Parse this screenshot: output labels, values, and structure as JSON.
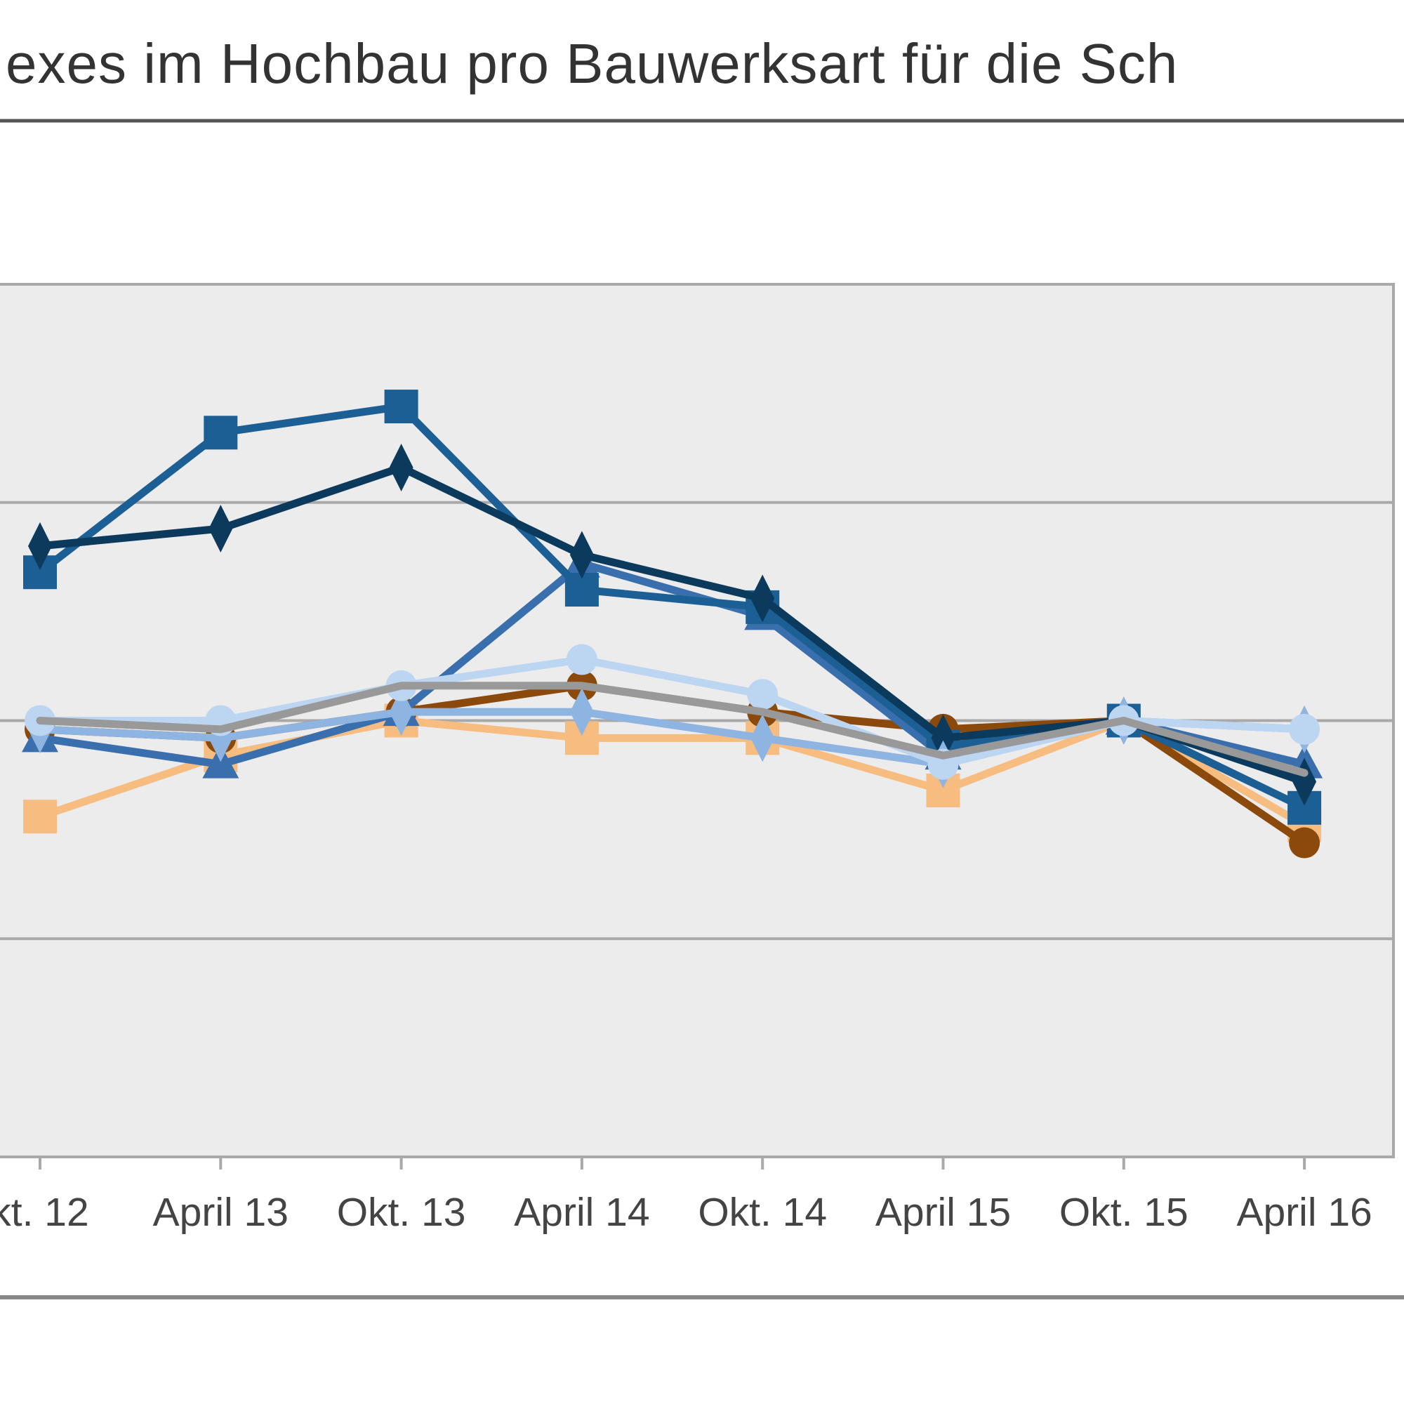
{
  "chart_data": {
    "type": "line",
    "title": "exes im Hochbau pro Bauwerksart für die Sch",
    "xlabel": "",
    "ylabel": "",
    "categories": [
      "kt. 12",
      "April 13",
      "Okt. 13",
      "April 14",
      "Okt. 14",
      "April 15",
      "Okt. 15",
      "April 16"
    ],
    "ylim": [
      95,
      105
    ],
    "grid": true,
    "series": [
      {
        "color": "#0b3a5c",
        "marker": "diamond",
        "values": [
          102.0,
          102.2,
          102.9,
          101.9,
          101.4,
          99.8,
          100.0,
          99.3
        ]
      },
      {
        "color": "#1c5f94",
        "marker": "square",
        "values": [
          101.7,
          103.3,
          103.6,
          101.5,
          101.3,
          99.7,
          100.0,
          99.0
        ]
      },
      {
        "color": "#3a6fae",
        "marker": "triangle",
        "values": [
          99.8,
          99.5,
          100.1,
          101.8,
          101.2,
          99.6,
          100.0,
          99.5
        ]
      },
      {
        "color": "#8b4a0b",
        "marker": "circle",
        "values": [
          99.9,
          99.8,
          100.1,
          100.4,
          100.1,
          99.9,
          100.0,
          98.6
        ]
      },
      {
        "color": "#f7bc80",
        "marker": "square",
        "values": [
          98.9,
          99.6,
          100.0,
          99.8,
          99.8,
          99.2,
          100.0,
          98.8
        ]
      },
      {
        "color": "#8eb4e2",
        "marker": "diamond",
        "values": [
          99.9,
          99.8,
          100.1,
          100.1,
          99.8,
          99.5,
          100.0,
          99.9
        ]
      },
      {
        "color": "#bcd6f2",
        "marker": "circle",
        "values": [
          100.0,
          100.0,
          100.4,
          100.7,
          100.3,
          99.5,
          100.0,
          99.9
        ]
      },
      {
        "color": "#999999",
        "marker": "none",
        "values": [
          100.0,
          99.9,
          100.4,
          100.4,
          100.1,
          99.6,
          100.0,
          99.4
        ]
      }
    ]
  }
}
